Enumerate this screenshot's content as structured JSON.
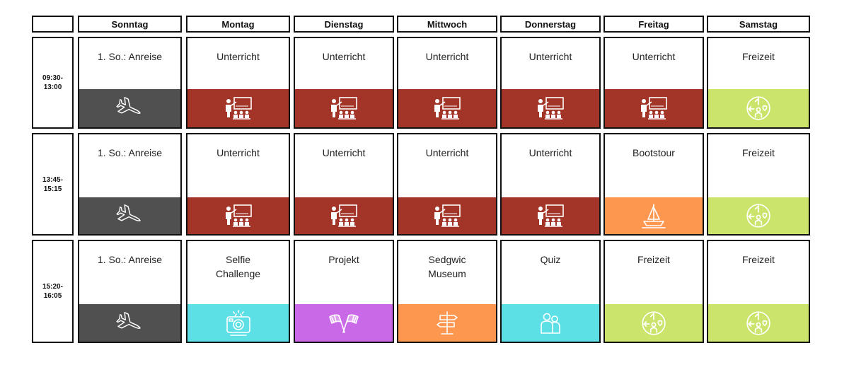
{
  "colors": {
    "gray": "#505050",
    "red": "#a23428",
    "green": "#cbe46b",
    "orange": "#fd9750",
    "cyan": "#5ce0e6",
    "purple": "#c969e7"
  },
  "days": [
    "Sonntag",
    "Montag",
    "Dienstag",
    "Mittwoch",
    "Donnerstag",
    "Freitag",
    "Samstag"
  ],
  "rows": [
    {
      "time": "09:30-\n13:00",
      "cells": [
        {
          "title": "1. So.: Anreise",
          "icon": "airplane-icon",
          "color": "gray"
        },
        {
          "title": "Unterricht",
          "icon": "classroom-icon",
          "color": "red"
        },
        {
          "title": "Unterricht",
          "icon": "classroom-icon",
          "color": "red"
        },
        {
          "title": "Unterricht",
          "icon": "classroom-icon",
          "color": "red"
        },
        {
          "title": "Unterricht",
          "icon": "classroom-icon",
          "color": "red"
        },
        {
          "title": "Unterricht",
          "icon": "classroom-icon",
          "color": "red"
        },
        {
          "title": "Freizeit",
          "icon": "leisure-icon",
          "color": "green"
        }
      ]
    },
    {
      "time": "13:45-\n15:15",
      "cells": [
        {
          "title": "1. So.: Anreise",
          "icon": "airplane-icon",
          "color": "gray"
        },
        {
          "title": "Unterricht",
          "icon": "classroom-icon",
          "color": "red"
        },
        {
          "title": "Unterricht",
          "icon": "classroom-icon",
          "color": "red"
        },
        {
          "title": "Unterricht",
          "icon": "classroom-icon",
          "color": "red"
        },
        {
          "title": "Unterricht",
          "icon": "classroom-icon",
          "color": "red"
        },
        {
          "title": "Bootstour",
          "icon": "sailboat-icon",
          "color": "orange"
        },
        {
          "title": "Freizeit",
          "icon": "leisure-icon",
          "color": "green"
        }
      ]
    },
    {
      "time": "15:20-\n16:05",
      "cells": [
        {
          "title": "1. So.: Anreise",
          "icon": "airplane-icon",
          "color": "gray"
        },
        {
          "title": "Selfie\nChallenge",
          "icon": "camera-icon",
          "color": "cyan"
        },
        {
          "title": "Projekt",
          "icon": "checkered-flags-icon",
          "color": "purple"
        },
        {
          "title": "Sedgwic\nMuseum",
          "icon": "signpost-icon",
          "color": "orange"
        },
        {
          "title": "Quiz",
          "icon": "people-icon",
          "color": "cyan"
        },
        {
          "title": "Freizeit",
          "icon": "leisure-icon",
          "color": "green"
        },
        {
          "title": "Freizeit",
          "icon": "leisure-icon",
          "color": "green"
        }
      ]
    }
  ]
}
